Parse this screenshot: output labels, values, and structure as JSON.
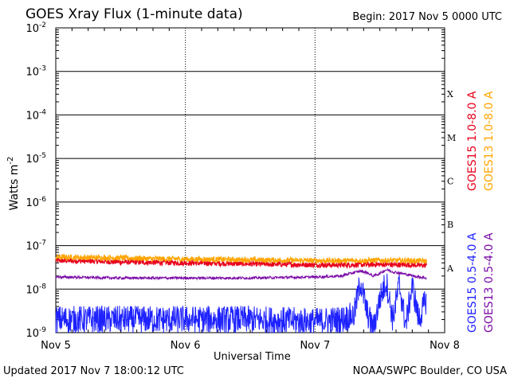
{
  "header": {
    "title": "GOES Xray Flux (1-minute data)",
    "begin": "Begin:  2017 Nov 5 0000 UTC"
  },
  "footer": {
    "updated": "Updated 2017 Nov  7 18:00:12 UTC",
    "credit": "NOAA/SWPC Boulder, CO USA"
  },
  "colors": {
    "goes15_long": "#e8001c",
    "goes13_long": "#ffa500",
    "goes15_short": "#1e22ff",
    "goes13_short": "#7a0aa6"
  },
  "chart_data": {
    "type": "line",
    "xlabel": "Universal Time",
    "ylabel": "Watts m",
    "ylabel_sup": "-2",
    "y_scale": "log",
    "ylim": [
      1e-09,
      0.01
    ],
    "x_range_days": [
      0,
      3
    ],
    "grid": true,
    "x_ticks": [
      {
        "value": 0,
        "label": "Nov 5"
      },
      {
        "value": 1,
        "label": "Nov 6"
      },
      {
        "value": 2,
        "label": "Nov 7"
      },
      {
        "value": 3,
        "label": "Nov 8"
      }
    ],
    "y_ticks": [
      {
        "exp": -9,
        "label": "10",
        "sup": "-9"
      },
      {
        "exp": -8,
        "label": "10",
        "sup": "-8"
      },
      {
        "exp": -7,
        "label": "10",
        "sup": "-7"
      },
      {
        "exp": -6,
        "label": "10",
        "sup": "-6"
      },
      {
        "exp": -5,
        "label": "10",
        "sup": "-5"
      },
      {
        "exp": -4,
        "label": "10",
        "sup": "-4"
      },
      {
        "exp": -3,
        "label": "10",
        "sup": "-3"
      },
      {
        "exp": -2,
        "label": "10",
        "sup": "-2"
      }
    ],
    "flare_classes": [
      {
        "label": "A",
        "exp": -8
      },
      {
        "label": "B",
        "exp": -7
      },
      {
        "label": "C",
        "exp": -6
      },
      {
        "label": "M",
        "exp": -5
      },
      {
        "label": "X",
        "exp": -4
      }
    ],
    "series": [
      {
        "name": "GOES15 1.0-8.0 A",
        "color": "#e8001c",
        "x": [
          0,
          0.25,
          0.5,
          0.75,
          1.0,
          1.25,
          1.5,
          1.75,
          2.0,
          2.25,
          2.5,
          2.75,
          2.86
        ],
        "y": [
          4.5e-08,
          4.4e-08,
          4.2e-08,
          4.1e-08,
          4e-08,
          3.9e-08,
          3.8e-08,
          3.7e-08,
          3.6e-08,
          3.6e-08,
          3.7e-08,
          3.6e-08,
          3.5e-08
        ]
      },
      {
        "name": "GOES13 1.0-8.0 A",
        "color": "#ffa500",
        "x": [
          0,
          0.25,
          0.5,
          0.75,
          1.0,
          1.25,
          1.5,
          1.75,
          2.0,
          2.25,
          2.5,
          2.75,
          2.86
        ],
        "y": [
          5.5e-08,
          5.3e-08,
          5.2e-08,
          5e-08,
          4.9e-08,
          4.8e-08,
          4.7e-08,
          4.6e-08,
          4.5e-08,
          4.5e-08,
          4.6e-08,
          4.5e-08,
          4.4e-08
        ]
      },
      {
        "name": "GOES15 0.5-4.0 A",
        "color": "#1e22ff",
        "x": [
          0,
          0.5,
          1.0,
          1.5,
          2.0,
          2.2,
          2.3,
          2.35,
          2.4,
          2.45,
          2.5,
          2.55,
          2.6,
          2.65,
          2.7,
          2.75,
          2.8,
          2.86
        ],
        "y": [
          2e-09,
          2e-09,
          2e-09,
          2e-09,
          1.8e-09,
          2e-09,
          2.5e-09,
          1.5e-08,
          3e-09,
          1.2e-09,
          6e-09,
          1.5e-08,
          2e-09,
          1.3e-08,
          1.5e-09,
          1.2e-08,
          2e-09,
          6e-09
        ]
      },
      {
        "name": "GOES13 0.5-4.0 A",
        "color": "#7a0aa6",
        "x": [
          0,
          0.5,
          1.0,
          1.5,
          2.0,
          2.2,
          2.3,
          2.35,
          2.4,
          2.45,
          2.5,
          2.55,
          2.6,
          2.7,
          2.8,
          2.86
        ],
        "y": [
          1.9e-08,
          1.8e-08,
          1.8e-08,
          1.8e-08,
          1.9e-08,
          2e-08,
          2.4e-08,
          2.6e-08,
          2.4e-08,
          2e-08,
          2.3e-08,
          2.8e-08,
          2.5e-08,
          2.2e-08,
          1.9e-08,
          1.8e-08
        ]
      }
    ]
  }
}
